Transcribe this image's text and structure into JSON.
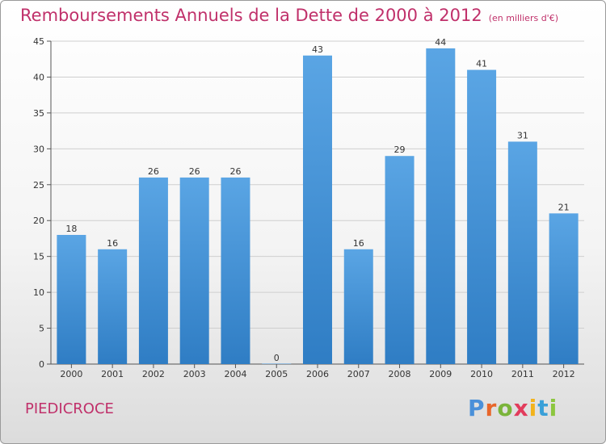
{
  "title": "Remboursements Annuels de la Dette de 2000 à 2012",
  "subtitle": "(en milliers d'€)",
  "place": "PIEDICROCE",
  "brand": {
    "letters": [
      "P",
      "r",
      "o",
      "x",
      "i",
      "t",
      "i"
    ],
    "colors": [
      "#4a90d9",
      "#e8662a",
      "#7ab43a",
      "#e23c5c",
      "#f2b31c",
      "#3aa0d8",
      "#8cc63f"
    ]
  },
  "colors": {
    "bar": "#5aa5e4",
    "bar_dark": "#2f7dc4",
    "title": "#c0306a",
    "grid": "#cfcfcf"
  },
  "chart_data": {
    "type": "bar",
    "categories": [
      "2000",
      "2001",
      "2002",
      "2003",
      "2004",
      "2005",
      "2006",
      "2007",
      "2008",
      "2009",
      "2010",
      "2011",
      "2012"
    ],
    "values": [
      18,
      16,
      26,
      26,
      26,
      0,
      43,
      16,
      29,
      44,
      41,
      31,
      21
    ],
    "ylim": [
      0,
      45
    ],
    "yticks": [
      0,
      5,
      10,
      15,
      20,
      25,
      30,
      35,
      40,
      45
    ],
    "grid": true,
    "xlabel": "",
    "ylabel": ""
  }
}
